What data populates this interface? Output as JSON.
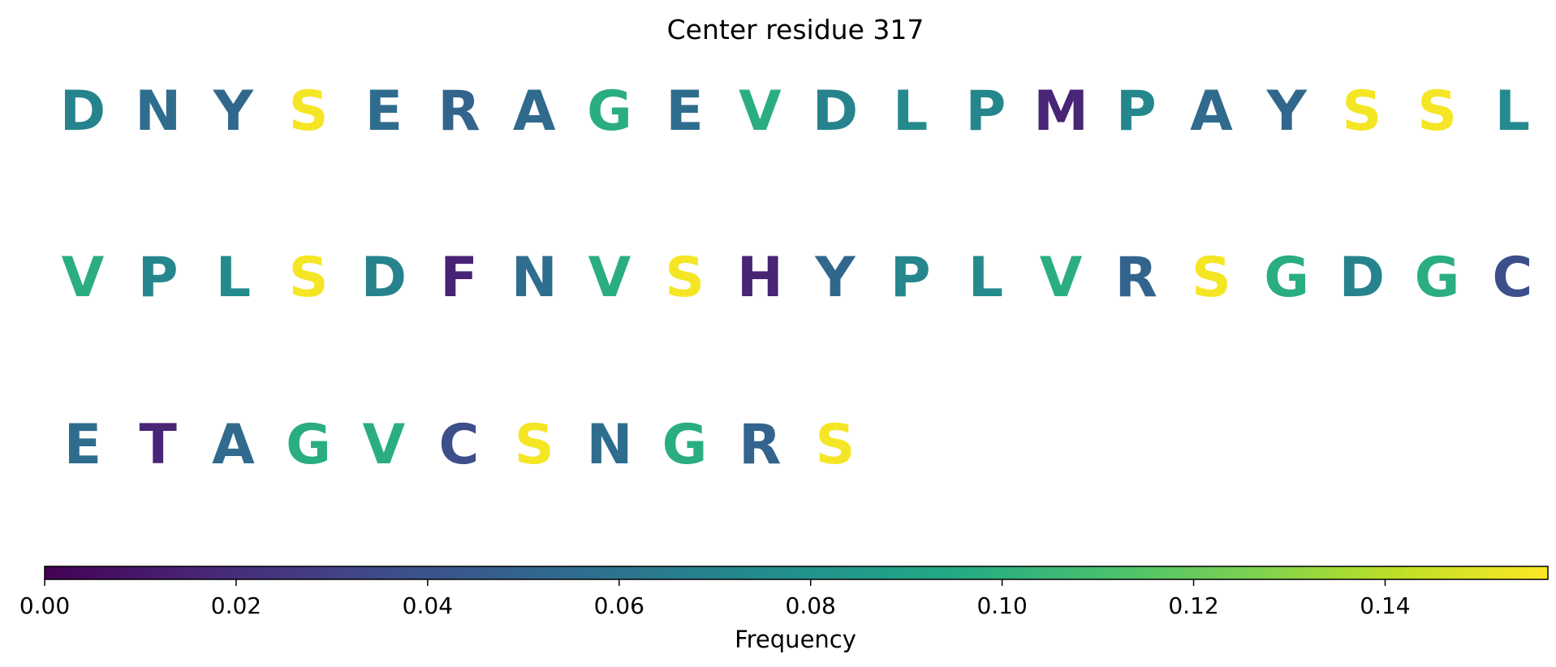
{
  "chart_data": {
    "type": "sequence-frequency",
    "title": "Center residue 317",
    "residues_per_row": 20,
    "residues": [
      {
        "letter": "D",
        "frequency": 0.07
      },
      {
        "letter": "N",
        "frequency": 0.056
      },
      {
        "letter": "Y",
        "frequency": 0.052
      },
      {
        "letter": "S",
        "frequency": 0.155
      },
      {
        "letter": "E",
        "frequency": 0.056
      },
      {
        "letter": "R",
        "frequency": 0.05
      },
      {
        "letter": "A",
        "frequency": 0.054
      },
      {
        "letter": "G",
        "frequency": 0.098
      },
      {
        "letter": "E",
        "frequency": 0.056
      },
      {
        "letter": "V",
        "frequency": 0.098
      },
      {
        "letter": "D",
        "frequency": 0.07
      },
      {
        "letter": "L",
        "frequency": 0.074
      },
      {
        "letter": "P",
        "frequency": 0.072
      },
      {
        "letter": "M",
        "frequency": 0.016
      },
      {
        "letter": "P",
        "frequency": 0.072
      },
      {
        "letter": "A",
        "frequency": 0.054
      },
      {
        "letter": "Y",
        "frequency": 0.052
      },
      {
        "letter": "S",
        "frequency": 0.155
      },
      {
        "letter": "S",
        "frequency": 0.155
      },
      {
        "letter": "L",
        "frequency": 0.074
      },
      {
        "letter": "V",
        "frequency": 0.098
      },
      {
        "letter": "P",
        "frequency": 0.072
      },
      {
        "letter": "L",
        "frequency": 0.074
      },
      {
        "letter": "S",
        "frequency": 0.155
      },
      {
        "letter": "D",
        "frequency": 0.07
      },
      {
        "letter": "F",
        "frequency": 0.015
      },
      {
        "letter": "N",
        "frequency": 0.056
      },
      {
        "letter": "V",
        "frequency": 0.098
      },
      {
        "letter": "S",
        "frequency": 0.155
      },
      {
        "letter": "H",
        "frequency": 0.016
      },
      {
        "letter": "Y",
        "frequency": 0.052
      },
      {
        "letter": "P",
        "frequency": 0.072
      },
      {
        "letter": "L",
        "frequency": 0.074
      },
      {
        "letter": "V",
        "frequency": 0.098
      },
      {
        "letter": "R",
        "frequency": 0.05
      },
      {
        "letter": "S",
        "frequency": 0.155
      },
      {
        "letter": "G",
        "frequency": 0.098
      },
      {
        "letter": "D",
        "frequency": 0.07
      },
      {
        "letter": "G",
        "frequency": 0.098
      },
      {
        "letter": "C",
        "frequency": 0.038
      },
      {
        "letter": "E",
        "frequency": 0.056
      },
      {
        "letter": "T",
        "frequency": 0.016
      },
      {
        "letter": "A",
        "frequency": 0.054
      },
      {
        "letter": "G",
        "frequency": 0.098
      },
      {
        "letter": "V",
        "frequency": 0.098
      },
      {
        "letter": "C",
        "frequency": 0.038
      },
      {
        "letter": "S",
        "frequency": 0.155
      },
      {
        "letter": "N",
        "frequency": 0.056
      },
      {
        "letter": "G",
        "frequency": 0.098
      },
      {
        "letter": "R",
        "frequency": 0.05
      },
      {
        "letter": "S",
        "frequency": 0.155
      }
    ],
    "colorbar": {
      "label": "Frequency",
      "colormap": "viridis",
      "range": [
        0.0,
        0.157
      ],
      "ticks": [
        0.0,
        0.02,
        0.04,
        0.06,
        0.08,
        0.1,
        0.12,
        0.14
      ],
      "tick_labels": [
        "0.00",
        "0.02",
        "0.04",
        "0.06",
        "0.08",
        "0.10",
        "0.12",
        "0.14"
      ],
      "orientation": "horizontal",
      "placement": "bottom"
    }
  }
}
